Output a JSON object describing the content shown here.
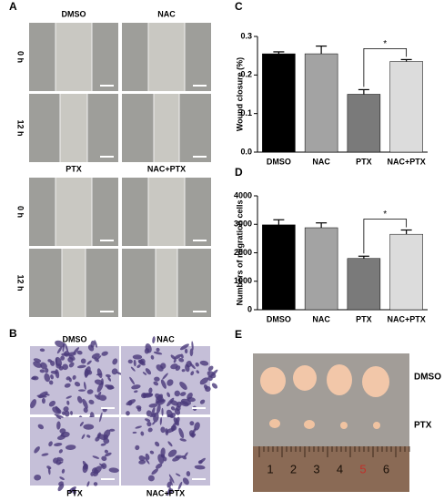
{
  "panel_labels": [
    "A",
    "B",
    "C",
    "D",
    "E"
  ],
  "wound_images": {
    "conditions": [
      "DMSO",
      "NAC",
      "PTX",
      "NAC+PTX"
    ],
    "times": [
      "0 h",
      "12 h"
    ]
  },
  "transwell_images": {
    "conditions": [
      "DMSO",
      "NAC",
      "PTX",
      "NAC+PTX"
    ]
  },
  "tumor_image": {
    "groups": [
      "DMSO",
      "PTX"
    ],
    "ruler_marks": [
      "1",
      "2",
      "3",
      "4",
      "5",
      "6"
    ]
  },
  "chart_data": [
    {
      "type": "bar",
      "ylabel": "Wound closure (%)",
      "categories": [
        "DMSO",
        "NAC",
        "PTX",
        "NAC+PTX"
      ],
      "values": [
        0.255,
        0.255,
        0.15,
        0.235
      ],
      "errors": [
        0.005,
        0.02,
        0.012,
        0.005
      ],
      "colors": [
        "#000000",
        "#a3a3a3",
        "#7a7a7a",
        "#dcdcdc"
      ],
      "ylim": [
        0,
        0.3
      ],
      "yticks": [
        {
          "value": 0,
          "label": "0.0"
        },
        0.1,
        0.2,
        0.3
      ],
      "significance": {
        "label": "*",
        "pair": [
          2,
          3
        ]
      }
    },
    {
      "type": "bar",
      "ylabel": "Numbers of migration cells",
      "categories": [
        "DMSO",
        "NAC",
        "PTX",
        "NAC+PTX"
      ],
      "values": [
        2980,
        2880,
        1800,
        2650
      ],
      "errors": [
        180,
        170,
        80,
        150
      ],
      "colors": [
        "#000000",
        "#a3a3a3",
        "#7a7a7a",
        "#dcdcdc"
      ],
      "ylim": [
        0,
        4000
      ],
      "yticks": [
        0,
        1000,
        2000,
        3000,
        4000
      ],
      "significance": {
        "label": "*",
        "pair": [
          2,
          3
        ]
      }
    }
  ]
}
